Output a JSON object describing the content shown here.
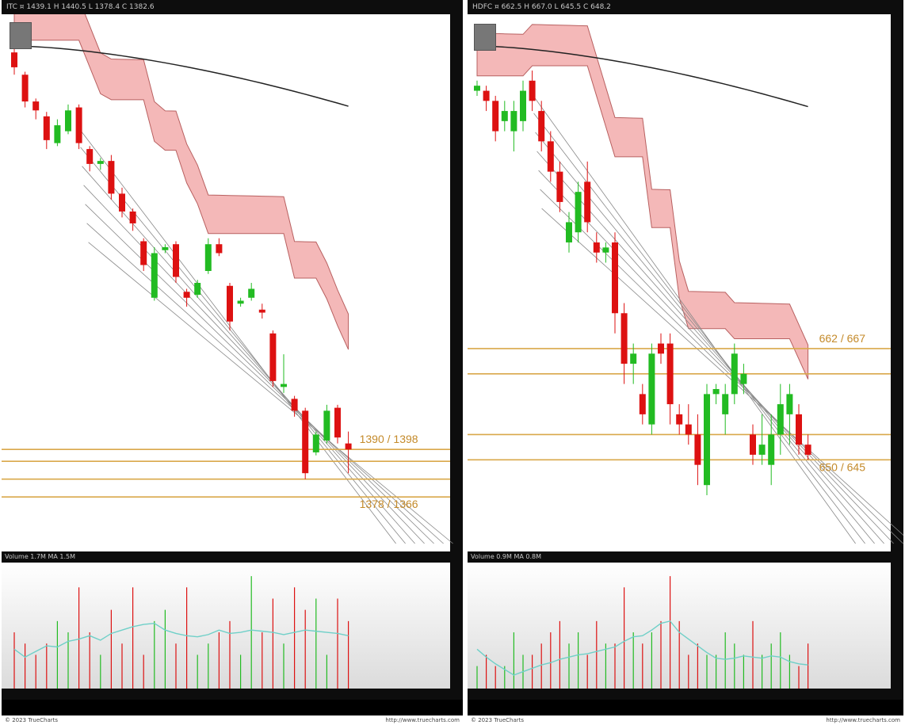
{
  "charts": [
    {
      "id": "left",
      "header_text": "ITC ¤ 1439.1 H 1440.5 L 1378.4 C 1382.6",
      "volume_header_text": "Volume 1.7M MA 1.5M",
      "footer_left": "© 2023 TrueCharts",
      "footer_right": "http://www.truecharts.com",
      "price_labels": [
        "1390 / 1398",
        "1378 / 1366"
      ],
      "colors": {
        "up": "#22bb22",
        "down": "#dd1111",
        "cloud": "#f0a0a0",
        "level": "#d9a84a",
        "ma": "#222222"
      }
    },
    {
      "id": "right",
      "header_text": "HDFC ¤ 662.5 H 667.0 L 645.5 C 648.2",
      "volume_header_text": "Volume 0.9M MA 0.8M",
      "footer_left": "© 2023 TrueCharts",
      "footer_right": "http://www.truecharts.com",
      "price_labels": [
        "662 / 667",
        "650 / 645"
      ],
      "colors": {
        "up": "#22bb22",
        "down": "#dd1111",
        "cloud": "#f0a0a0",
        "level": "#d9a84a",
        "ma": "#222222"
      }
    }
  ],
  "chart_data": [
    {
      "type": "candlestick",
      "title": "",
      "ylim": [
        1340,
        1680
      ],
      "horizontal_levels": [
        1398,
        1390,
        1378,
        1366
      ],
      "candles": [
        {
          "o": 1665,
          "h": 1670,
          "l": 1650,
          "c": 1655
        },
        {
          "o": 1650,
          "h": 1652,
          "l": 1628,
          "c": 1632
        },
        {
          "o": 1632,
          "h": 1634,
          "l": 1620,
          "c": 1626
        },
        {
          "o": 1622,
          "h": 1625,
          "l": 1600,
          "c": 1606
        },
        {
          "o": 1604,
          "h": 1620,
          "l": 1602,
          "c": 1616
        },
        {
          "o": 1612,
          "h": 1630,
          "l": 1610,
          "c": 1626
        },
        {
          "o": 1628,
          "h": 1630,
          "l": 1600,
          "c": 1604
        },
        {
          "o": 1600,
          "h": 1602,
          "l": 1585,
          "c": 1590
        },
        {
          "o": 1590,
          "h": 1594,
          "l": 1586,
          "c": 1592
        },
        {
          "o": 1592,
          "h": 1596,
          "l": 1566,
          "c": 1570
        },
        {
          "o": 1570,
          "h": 1574,
          "l": 1554,
          "c": 1558
        },
        {
          "o": 1558,
          "h": 1560,
          "l": 1545,
          "c": 1550
        },
        {
          "o": 1538,
          "h": 1540,
          "l": 1518,
          "c": 1522
        },
        {
          "o": 1500,
          "h": 1534,
          "l": 1498,
          "c": 1530
        },
        {
          "o": 1532,
          "h": 1536,
          "l": 1530,
          "c": 1534
        },
        {
          "o": 1536,
          "h": 1538,
          "l": 1510,
          "c": 1514
        },
        {
          "o": 1504,
          "h": 1506,
          "l": 1494,
          "c": 1500
        },
        {
          "o": 1502,
          "h": 1512,
          "l": 1500,
          "c": 1510
        },
        {
          "o": 1518,
          "h": 1540,
          "l": 1516,
          "c": 1536
        },
        {
          "o": 1536,
          "h": 1540,
          "l": 1528,
          "c": 1530
        },
        {
          "o": 1508,
          "h": 1510,
          "l": 1478,
          "c": 1484
        },
        {
          "o": 1496,
          "h": 1500,
          "l": 1494,
          "c": 1498
        },
        {
          "o": 1500,
          "h": 1510,
          "l": 1498,
          "c": 1506
        },
        {
          "o": 1492,
          "h": 1496,
          "l": 1486,
          "c": 1490
        },
        {
          "o": 1476,
          "h": 1478,
          "l": 1440,
          "c": 1444
        },
        {
          "o": 1440,
          "h": 1462,
          "l": 1436,
          "c": 1442
        },
        {
          "o": 1432,
          "h": 1434,
          "l": 1420,
          "c": 1424
        },
        {
          "o": 1424,
          "h": 1426,
          "l": 1378,
          "c": 1382
        },
        {
          "o": 1396,
          "h": 1410,
          "l": 1394,
          "c": 1408
        },
        {
          "o": 1404,
          "h": 1428,
          "l": 1402,
          "c": 1424
        },
        {
          "o": 1426,
          "h": 1428,
          "l": 1402,
          "c": 1406
        },
        {
          "o": 1402,
          "h": 1410,
          "l": 1382,
          "c": 1398
        }
      ],
      "volume": [
        0.5,
        0.4,
        0.3,
        0.4,
        0.6,
        0.5,
        0.9,
        0.5,
        0.3,
        0.7,
        0.4,
        0.9,
        0.3,
        0.6,
        0.7,
        0.4,
        0.9,
        0.3,
        0.4,
        0.5,
        0.6,
        0.3,
        1.0,
        0.5,
        0.8,
        0.4,
        0.9,
        0.7,
        0.8,
        0.3,
        0.8,
        0.6
      ],
      "volume_ma": [
        0.35,
        0.28,
        0.33,
        0.38,
        0.37,
        0.42,
        0.44,
        0.47,
        0.43,
        0.49,
        0.52,
        0.55,
        0.57,
        0.58,
        0.52,
        0.49,
        0.47,
        0.46,
        0.48,
        0.52,
        0.49,
        0.5,
        0.52,
        0.51,
        0.5,
        0.48,
        0.5,
        0.52,
        0.51,
        0.5,
        0.49,
        0.47
      ]
    },
    {
      "type": "candlestick",
      "title": "",
      "ylim": [
        630,
        730
      ],
      "horizontal_levels": [
        667,
        662,
        650,
        645
      ],
      "candles": [
        {
          "o": 718,
          "h": 720,
          "l": 717,
          "c": 719
        },
        {
          "o": 718,
          "h": 719,
          "l": 714,
          "c": 716
        },
        {
          "o": 716,
          "h": 717,
          "l": 708,
          "c": 710
        },
        {
          "o": 712,
          "h": 716,
          "l": 710,
          "c": 714
        },
        {
          "o": 710,
          "h": 716,
          "l": 706,
          "c": 714
        },
        {
          "o": 712,
          "h": 720,
          "l": 710,
          "c": 718
        },
        {
          "o": 720,
          "h": 722,
          "l": 714,
          "c": 716
        },
        {
          "o": 714,
          "h": 716,
          "l": 706,
          "c": 708
        },
        {
          "o": 708,
          "h": 710,
          "l": 700,
          "c": 702
        },
        {
          "o": 702,
          "h": 704,
          "l": 694,
          "c": 696
        },
        {
          "o": 688,
          "h": 694,
          "l": 686,
          "c": 692
        },
        {
          "o": 690,
          "h": 700,
          "l": 688,
          "c": 698
        },
        {
          "o": 700,
          "h": 704,
          "l": 690,
          "c": 692
        },
        {
          "o": 688,
          "h": 690,
          "l": 684,
          "c": 686
        },
        {
          "o": 686,
          "h": 688,
          "l": 684,
          "c": 687
        },
        {
          "o": 688,
          "h": 690,
          "l": 670,
          "c": 674
        },
        {
          "o": 674,
          "h": 676,
          "l": 660,
          "c": 664
        },
        {
          "o": 664,
          "h": 668,
          "l": 660,
          "c": 666
        },
        {
          "o": 658,
          "h": 660,
          "l": 652,
          "c": 654
        },
        {
          "o": 652,
          "h": 668,
          "l": 650,
          "c": 666
        },
        {
          "o": 668,
          "h": 670,
          "l": 664,
          "c": 666
        },
        {
          "o": 668,
          "h": 670,
          "l": 652,
          "c": 656
        },
        {
          "o": 654,
          "h": 656,
          "l": 650,
          "c": 652
        },
        {
          "o": 652,
          "h": 656,
          "l": 648,
          "c": 650
        },
        {
          "o": 650,
          "h": 654,
          "l": 640,
          "c": 644
        },
        {
          "o": 640,
          "h": 660,
          "l": 638,
          "c": 658
        },
        {
          "o": 658,
          "h": 660,
          "l": 656,
          "c": 659
        },
        {
          "o": 654,
          "h": 660,
          "l": 650,
          "c": 658
        },
        {
          "o": 658,
          "h": 668,
          "l": 656,
          "c": 666
        },
        {
          "o": 660,
          "h": 664,
          "l": 658,
          "c": 662
        },
        {
          "o": 650,
          "h": 652,
          "l": 644,
          "c": 646
        },
        {
          "o": 646,
          "h": 654,
          "l": 644,
          "c": 648
        },
        {
          "o": 644,
          "h": 654,
          "l": 640,
          "c": 650
        },
        {
          "o": 650,
          "h": 660,
          "l": 646,
          "c": 656
        },
        {
          "o": 654,
          "h": 660,
          "l": 648,
          "c": 658
        },
        {
          "o": 654,
          "h": 656,
          "l": 646,
          "c": 648
        },
        {
          "o": 648,
          "h": 650,
          "l": 645,
          "c": 646
        }
      ],
      "volume": [
        0.2,
        0.3,
        0.2,
        0.2,
        0.5,
        0.3,
        0.3,
        0.4,
        0.5,
        0.6,
        0.4,
        0.5,
        0.3,
        0.6,
        0.4,
        0.4,
        0.9,
        0.5,
        0.4,
        0.5,
        0.6,
        1.0,
        0.6,
        0.3,
        0.4,
        0.3,
        0.3,
        0.5,
        0.4,
        0.3,
        0.6,
        0.3,
        0.4,
        0.5,
        0.3,
        0.2,
        0.4
      ],
      "volume_ma": [
        0.35,
        0.28,
        0.22,
        0.17,
        0.12,
        0.15,
        0.18,
        0.21,
        0.23,
        0.26,
        0.28,
        0.3,
        0.31,
        0.33,
        0.35,
        0.37,
        0.42,
        0.46,
        0.47,
        0.52,
        0.58,
        0.6,
        0.5,
        0.44,
        0.38,
        0.32,
        0.27,
        0.26,
        0.27,
        0.29,
        0.28,
        0.27,
        0.29,
        0.28,
        0.24,
        0.22,
        0.21
      ]
    }
  ]
}
